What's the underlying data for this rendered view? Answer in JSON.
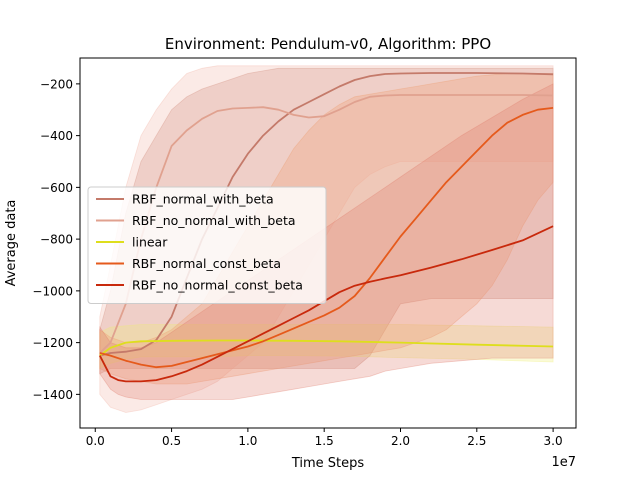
{
  "chart_data": {
    "type": "line",
    "title": "Environment: Pendulum-v0,  Algorithm: PPO",
    "xlabel": "Time Steps",
    "ylabel": "Average data",
    "x_offset_label": "1e7",
    "xlim": [
      -0.1,
      3.15
    ],
    "ylim": [
      -1530,
      -100
    ],
    "x_ticks": [
      0.0,
      0.5,
      1.0,
      1.5,
      2.0,
      2.5,
      3.0
    ],
    "x_tick_labels": [
      "0.0",
      "0.5",
      "1.0",
      "1.5",
      "2.0",
      "2.5",
      "3.0"
    ],
    "y_ticks": [
      -1400,
      -1200,
      -1000,
      -800,
      -600,
      -400,
      -200
    ],
    "y_tick_labels": [
      "−1400",
      "−1200",
      "−1000",
      "−800",
      "−600",
      "−400",
      "−200"
    ],
    "grid": false,
    "legend_position": "center-left",
    "series": [
      {
        "name": "RBF_normal_with_beta",
        "color": "#c47a6a",
        "band_color": "#c47a6a",
        "x": [
          0.03,
          0.1,
          0.2,
          0.3,
          0.4,
          0.5,
          0.6,
          0.7,
          0.8,
          0.9,
          1.0,
          1.1,
          1.2,
          1.3,
          1.4,
          1.5,
          1.6,
          1.7,
          1.8,
          1.9,
          2.0,
          2.2,
          2.5,
          2.8,
          3.0
        ],
        "y": [
          -1250,
          -1240,
          -1235,
          -1225,
          -1190,
          -1100,
          -950,
          -800,
          -680,
          -560,
          -470,
          -400,
          -345,
          -300,
          -270,
          -240,
          -210,
          -185,
          -170,
          -162,
          -160,
          -158,
          -158,
          -160,
          -163
        ],
        "upper": [
          -1150,
          -1000,
          -700,
          -500,
          -400,
          -300,
          -250,
          -220,
          -200,
          -180,
          -160,
          -150,
          -140,
          -140,
          -140,
          -140,
          -140,
          -140,
          -140,
          -140,
          -140,
          -140,
          -140,
          -140,
          -140
        ],
        "lower": [
          -1320,
          -1300,
          -1300,
          -1300,
          -1300,
          -1300,
          -1300,
          -1300,
          -1300,
          -1300,
          -1300,
          -1300,
          -1300,
          -1300,
          -1300,
          -1300,
          -1300,
          -1300,
          -1250,
          -1150,
          -1050,
          -1030,
          -1030,
          -1030,
          -1030
        ]
      },
      {
        "name": "RBF_no_normal_with_beta",
        "color": "#e0a18f",
        "band_color": "#f1b3a4",
        "x": [
          0.03,
          0.1,
          0.2,
          0.3,
          0.4,
          0.5,
          0.6,
          0.7,
          0.8,
          0.9,
          1.0,
          1.1,
          1.2,
          1.3,
          1.4,
          1.5,
          1.6,
          1.7,
          1.8,
          1.9,
          2.0,
          2.2,
          2.5,
          2.8,
          3.0
        ],
        "y": [
          -1240,
          -1200,
          -1050,
          -800,
          -600,
          -440,
          -380,
          -335,
          -305,
          -295,
          -293,
          -290,
          -300,
          -320,
          -330,
          -325,
          -300,
          -270,
          -250,
          -245,
          -243,
          -243,
          -243,
          -243,
          -245
        ],
        "upper": [
          -1100,
          -900,
          -600,
          -400,
          -300,
          -220,
          -160,
          -140,
          -130,
          -130,
          -130,
          -130,
          -130,
          -130,
          -130,
          -130,
          -130,
          -130,
          -130,
          -130,
          -130,
          -130,
          -130,
          -130,
          -130
        ],
        "lower": [
          -1400,
          -1450,
          -1470,
          -1460,
          -1440,
          -1420,
          -1400,
          -1380,
          -1350,
          -1300,
          -1250,
          -1200,
          -1100,
          -1000,
          -900,
          -800,
          -700,
          -600,
          -550,
          -520,
          -500,
          -500,
          -500,
          -500,
          -500
        ]
      },
      {
        "name": "linear",
        "color": "#dede1d",
        "band_color": "#eeee70",
        "x": [
          0.03,
          0.1,
          0.2,
          0.3,
          0.5,
          0.8,
          1.0,
          1.3,
          1.6,
          2.0,
          2.5,
          3.0
        ],
        "y": [
          -1250,
          -1220,
          -1200,
          -1195,
          -1193,
          -1192,
          -1192,
          -1193,
          -1195,
          -1200,
          -1208,
          -1215
        ],
        "upper": [
          -1160,
          -1140,
          -1135,
          -1130,
          -1130,
          -1130,
          -1130,
          -1130,
          -1130,
          -1130,
          -1135,
          -1140
        ],
        "lower": [
          -1300,
          -1280,
          -1265,
          -1255,
          -1255,
          -1255,
          -1250,
          -1250,
          -1252,
          -1258,
          -1265,
          -1275
        ]
      },
      {
        "name": "RBF_normal_const_beta",
        "color": "#e55a1c",
        "band_color": "#ef9a6a",
        "x": [
          0.03,
          0.1,
          0.2,
          0.3,
          0.4,
          0.5,
          0.6,
          0.7,
          0.8,
          0.9,
          1.0,
          1.1,
          1.2,
          1.3,
          1.4,
          1.5,
          1.6,
          1.7,
          1.8,
          1.9,
          2.0,
          2.1,
          2.2,
          2.3,
          2.4,
          2.5,
          2.6,
          2.7,
          2.8,
          2.9,
          3.0
        ],
        "y": [
          -1240,
          -1250,
          -1270,
          -1285,
          -1295,
          -1290,
          -1275,
          -1260,
          -1245,
          -1230,
          -1215,
          -1195,
          -1170,
          -1145,
          -1120,
          -1095,
          -1065,
          -1020,
          -950,
          -870,
          -790,
          -720,
          -650,
          -580,
          -520,
          -460,
          -400,
          -350,
          -320,
          -300,
          -293
        ],
        "upper": [
          -1150,
          -1180,
          -1200,
          -1200,
          -1180,
          -1150,
          -1100,
          -1050,
          -950,
          -850,
          -750,
          -650,
          -550,
          -450,
          -380,
          -320,
          -280,
          -250,
          -240,
          -230,
          -220,
          -210,
          -200,
          -190,
          -180,
          -170,
          -165,
          -160,
          -160,
          -160,
          -160
        ],
        "lower": [
          -1300,
          -1320,
          -1340,
          -1350,
          -1360,
          -1360,
          -1360,
          -1350,
          -1340,
          -1330,
          -1320,
          -1310,
          -1300,
          -1290,
          -1280,
          -1270,
          -1260,
          -1250,
          -1240,
          -1230,
          -1220,
          -1200,
          -1180,
          -1150,
          -1100,
          -1050,
          -980,
          -880,
          -750,
          -650,
          -580
        ]
      },
      {
        "name": "RBF_no_normal_const_beta",
        "color": "#c8290c",
        "band_color": "#e07a6a",
        "x": [
          0.03,
          0.1,
          0.15,
          0.2,
          0.3,
          0.4,
          0.5,
          0.6,
          0.7,
          0.8,
          0.9,
          1.0,
          1.1,
          1.2,
          1.3,
          1.4,
          1.5,
          1.6,
          1.7,
          1.8,
          1.9,
          2.0,
          2.2,
          2.4,
          2.6,
          2.8,
          3.0
        ],
        "y": [
          -1250,
          -1330,
          -1345,
          -1350,
          -1350,
          -1345,
          -1330,
          -1310,
          -1285,
          -1255,
          -1225,
          -1195,
          -1165,
          -1135,
          -1105,
          -1075,
          -1040,
          -1005,
          -980,
          -965,
          -952,
          -940,
          -910,
          -878,
          -842,
          -805,
          -750
        ],
        "upper": [
          -1140,
          -1200,
          -1210,
          -1220,
          -1220,
          -1200,
          -1160,
          -1120,
          -1080,
          -1040,
          -1000,
          -960,
          -920,
          -880,
          -840,
          -800,
          -760,
          -720,
          -680,
          -640,
          -600,
          -560,
          -480,
          -400,
          -330,
          -260,
          -200
        ],
        "lower": [
          -1320,
          -1380,
          -1400,
          -1410,
          -1420,
          -1420,
          -1420,
          -1420,
          -1420,
          -1420,
          -1420,
          -1410,
          -1400,
          -1390,
          -1380,
          -1370,
          -1360,
          -1350,
          -1340,
          -1330,
          -1310,
          -1300,
          -1280,
          -1270,
          -1260,
          -1260,
          -1260
        ]
      }
    ]
  }
}
